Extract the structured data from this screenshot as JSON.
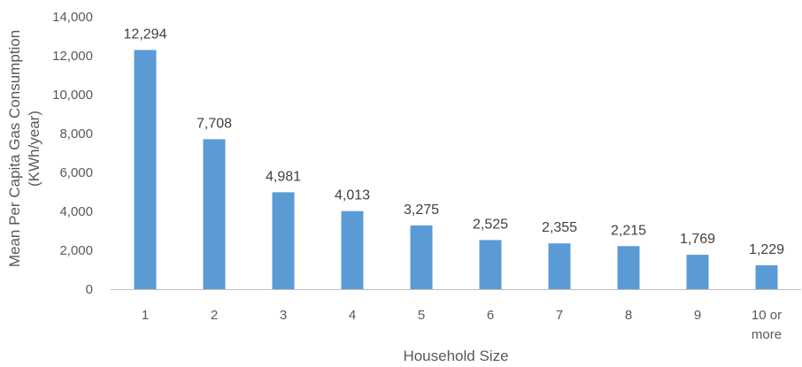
{
  "chart_data": {
    "type": "bar",
    "title": "",
    "xlabel": "Household Size",
    "ylabel_lines": [
      "Mean Per Capita Gas Consumption",
      "(KWh/year)"
    ],
    "categories": [
      [
        "1"
      ],
      [
        "2"
      ],
      [
        "3"
      ],
      [
        "4"
      ],
      [
        "5"
      ],
      [
        "6"
      ],
      [
        "7"
      ],
      [
        "8"
      ],
      [
        "9"
      ],
      [
        "10 or",
        "more"
      ]
    ],
    "values": [
      12294,
      7708,
      4981,
      4013,
      3275,
      2525,
      2355,
      2215,
      1769,
      1229
    ],
    "value_labels": [
      "12,294",
      "7,708",
      "4,981",
      "4,013",
      "3,275",
      "2,525",
      "2,355",
      "2,215",
      "1,769",
      "1,229"
    ],
    "ylim": [
      0,
      14000
    ],
    "yticks": [
      0,
      2000,
      4000,
      6000,
      8000,
      10000,
      12000,
      14000
    ],
    "ytick_labels": [
      "0",
      "2,000",
      "4,000",
      "6,000",
      "8,000",
      "10,000",
      "12,000",
      "14,000"
    ],
    "grid": false,
    "legend": "none",
    "colors": {
      "bar": "#5B9BD5",
      "axis": "#BFBFBF",
      "text": "#595959",
      "label": "#404040"
    }
  }
}
